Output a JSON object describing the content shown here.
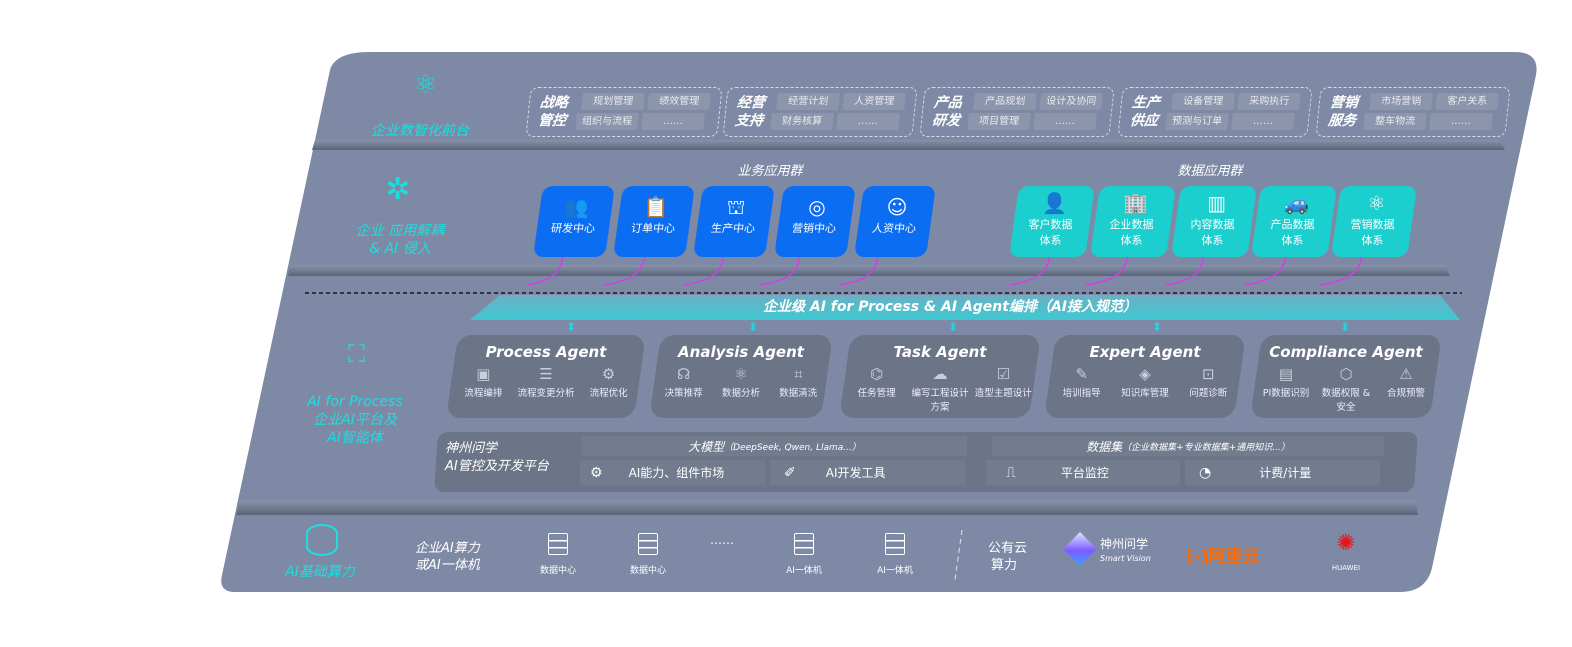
{
  "layers": {
    "front": {
      "label": "企业数智化前台",
      "icon": "brain-icon"
    },
    "apps": {
      "label_line1": "企业 应用解耦",
      "label_line2": "& AI 侵入",
      "icon": "molecule-icon"
    },
    "ai": {
      "label_line1": "AI for Process",
      "label_line2": "企业AI平台及",
      "label_line3": "AI智能体",
      "icon": "face-scan-icon"
    },
    "infra": {
      "label": "AI基础算力",
      "icon": "database-icon"
    }
  },
  "front_groups": [
    {
      "title": "战略管控",
      "items": [
        "规划管理",
        "绩效管理",
        "组织与流程",
        "……"
      ]
    },
    {
      "title": "经营支持",
      "items": [
        "经营计划",
        "人资管理",
        "财务核算",
        "……"
      ]
    },
    {
      "title": "产品研发",
      "items": [
        "产品规划",
        "设计及协同",
        "项目管理",
        "……"
      ]
    },
    {
      "title": "生产供应",
      "items": [
        "设备管理",
        "采购执行",
        "预测与订单",
        "……"
      ]
    },
    {
      "title": "营销服务",
      "items": [
        "市场营销",
        "客户关系",
        "整车物流",
        "……"
      ]
    }
  ],
  "business_apps": {
    "title": "业务应用群",
    "color": "#0b6df2",
    "items": [
      {
        "label": "研发中心",
        "icon": "team-icon"
      },
      {
        "label": "订单中心",
        "icon": "clipboard-icon"
      },
      {
        "label": "生产中心",
        "icon": "production-icon"
      },
      {
        "label": "营销中心",
        "icon": "target-icon"
      },
      {
        "label": "人资中心",
        "icon": "person-icon"
      }
    ]
  },
  "data_apps": {
    "title": "数据应用群",
    "color": "#1ccfcf",
    "items": [
      {
        "label": "客户数据体系",
        "icon": "user-icon"
      },
      {
        "label": "企业数据体系",
        "icon": "building-icon"
      },
      {
        "label": "内容数据体系",
        "icon": "books-icon"
      },
      {
        "label": "产品数据体系",
        "icon": "car-icon"
      },
      {
        "label": "营销数据体系",
        "icon": "atom-icon"
      }
    ]
  },
  "orchestration_banner": "企业级 AI for Process & AI Agent编排（AI接入规范）",
  "agents": [
    {
      "title": "Process Agent",
      "items": [
        {
          "label": "流程编排",
          "icon": "chart-icon"
        },
        {
          "label": "流程变更分析",
          "icon": "list-icon"
        },
        {
          "label": "流程优化",
          "icon": "optimize-icon"
        }
      ]
    },
    {
      "title": "Analysis Agent",
      "items": [
        {
          "label": "决策推荐",
          "icon": "head-icon"
        },
        {
          "label": "数据分析",
          "icon": "atom-icon"
        },
        {
          "label": "数据清洗",
          "icon": "clean-icon"
        }
      ]
    },
    {
      "title": "Task Agent",
      "items": [
        {
          "label": "任务管理",
          "icon": "network-icon"
        },
        {
          "label": "编写工程设计方案",
          "icon": "cloud-icon"
        },
        {
          "label": "造型主题设计",
          "icon": "checklist-icon"
        }
      ]
    },
    {
      "title": "Expert Agent",
      "items": [
        {
          "label": "培训指导",
          "icon": "training-icon"
        },
        {
          "label": "知识库管理",
          "icon": "layers-icon"
        },
        {
          "label": "问题诊断",
          "icon": "diagnose-icon"
        }
      ]
    },
    {
      "title": "Compliance Agent",
      "items": [
        {
          "label": "PI数据识别",
          "icon": "id-icon"
        },
        {
          "label": "数据权限 & 安全",
          "icon": "shield-icon"
        },
        {
          "label": "合规预警",
          "icon": "alert-icon"
        }
      ]
    }
  ],
  "platform": {
    "title_line1": "神州问学",
    "title_line2": "AI管控及开发平台",
    "llm_title": "大模型",
    "llm_note": "（DeepSeek, Qwen, Llama...）",
    "market": "AI能力、组件市场",
    "devtools": "AI开发工具",
    "dataset_title": "数据集",
    "dataset_note": "（企业数据集+专业数据集+通用知识...）",
    "monitor": "平台监控",
    "billing": "计费/计量"
  },
  "infra": {
    "private_line1": "企业AI算力",
    "private_line2": "或AI一体机",
    "servers": [
      "数据中心",
      "数据中心",
      "AI一体机",
      "AI一体机"
    ],
    "ellipsis": "……",
    "public_line1": "公有云",
    "public_line2": "算力",
    "logos": {
      "shenzhou": {
        "name": "神州问学",
        "sub": "Smart Vision"
      },
      "aliyun": {
        "name": "阿里云",
        "color": "#ff6a00"
      },
      "huawei": {
        "name": "HUAWEI",
        "color": "#e8141c"
      }
    }
  }
}
